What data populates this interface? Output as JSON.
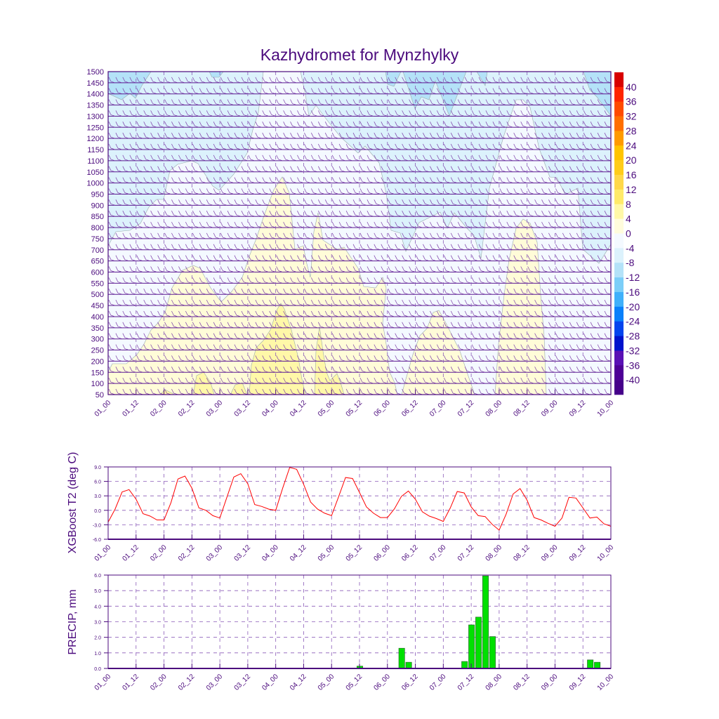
{
  "title": "Kazhydromet for Mynzhylky",
  "x_ticks": [
    "01_00",
    "01_12",
    "02_00",
    "02_12",
    "03_00",
    "03_12",
    "04_00",
    "04_12",
    "05_00",
    "05_12",
    "06_00",
    "06_12",
    "07_00",
    "07_12",
    "08_00",
    "08_12",
    "09_00",
    "09_12",
    "10_00"
  ],
  "chart_data": [
    {
      "type": "heatmap",
      "title": "Kazhydromet for Mynzhylky",
      "description_kind": "time-height filled contour of temperature with wind barbs",
      "y_ticks": [
        "1500",
        "1450",
        "1400",
        "1350",
        "1300",
        "1250",
        "1200",
        "1150",
        "1100",
        "1050",
        "1000",
        "950",
        "900",
        "850",
        "800",
        "750",
        "700",
        "650",
        "600",
        "550",
        "500",
        "450",
        "400",
        "350",
        "300",
        "250",
        "200",
        "150",
        "100",
        "50"
      ],
      "ylim": [
        50,
        1500
      ],
      "colorbar": {
        "labels": [
          "40",
          "36",
          "32",
          "28",
          "24",
          "20",
          "16",
          "12",
          "8",
          "4",
          "0",
          "-4",
          "-8",
          "-12",
          "-16",
          "-20",
          "-24",
          "-28",
          "-32",
          "-36",
          "-40"
        ],
        "colors": [
          "#d80000",
          "#ff2400",
          "#ff4a00",
          "#ff6e00",
          "#ff9a00",
          "#ffc400",
          "#ffcc1a",
          "#ffd84a",
          "#ffea6a",
          "#fff8a8",
          "#fffcdc",
          "#f4f9ff",
          "#dcf2fc",
          "#b4e2f8",
          "#7ccef8",
          "#40b0fa",
          "#0a80fa",
          "#0444ee",
          "#0012cc",
          "#5a10b4",
          "#4e0096",
          "#46008a"
        ]
      }
    },
    {
      "type": "line",
      "ylabel": "XGBoost T2 (deg C)",
      "ylim": [
        -6,
        9
      ],
      "y_ticks": [
        "9.0",
        "6.0",
        "3.0",
        "0.0",
        "-3.0",
        "-6.0"
      ],
      "x_step_hours": 3,
      "color": "#ff0000",
      "values": [
        -2.45,
        0.25,
        3.8,
        4.3,
        2.3,
        -0.7,
        -1.2,
        -2.0,
        -2.0,
        1.6,
        6.5,
        7.1,
        4.6,
        0.5,
        0.0,
        -1.1,
        -1.6,
        2.7,
        6.9,
        7.6,
        5.5,
        1.2,
        0.8,
        0.25,
        0.0,
        4.6,
        8.9,
        8.5,
        5.4,
        1.7,
        0.25,
        -0.6,
        -1.1,
        2.8,
        6.8,
        6.6,
        3.7,
        0.7,
        -0.6,
        -1.5,
        -1.5,
        0.3,
        2.9,
        4.0,
        2.3,
        -0.3,
        -1.2,
        -1.7,
        -2.3,
        0.5,
        3.9,
        3.6,
        0.7,
        -1.1,
        -1.3,
        -2.9,
        -4.1,
        -0.8,
        3.4,
        4.5,
        2.1,
        -1.5,
        -2.0,
        -2.7,
        -3.3,
        -1.6,
        2.7,
        2.55,
        0.5,
        -1.6,
        -1.4,
        -2.8,
        -3.3
      ]
    },
    {
      "type": "bar",
      "ylabel": "PRECIP, mm",
      "ylim": [
        0,
        6
      ],
      "y_ticks": [
        "6.0",
        "5.0",
        "4.0",
        "3.0",
        "2.0",
        "1.0",
        "0.0"
      ],
      "x_step_hours": 3,
      "color": "#00e000",
      "bars": [
        {
          "index": 36,
          "value": 0.15
        },
        {
          "index": 42,
          "value": 1.3
        },
        {
          "index": 43,
          "value": 0.4
        },
        {
          "index": 51,
          "value": 0.45
        },
        {
          "index": 52,
          "value": 2.8
        },
        {
          "index": 53,
          "value": 3.3
        },
        {
          "index": 54,
          "value": 5.95
        },
        {
          "index": 55,
          "value": 2.05
        },
        {
          "index": 69,
          "value": 0.55
        },
        {
          "index": 70,
          "value": 0.4
        }
      ]
    }
  ]
}
